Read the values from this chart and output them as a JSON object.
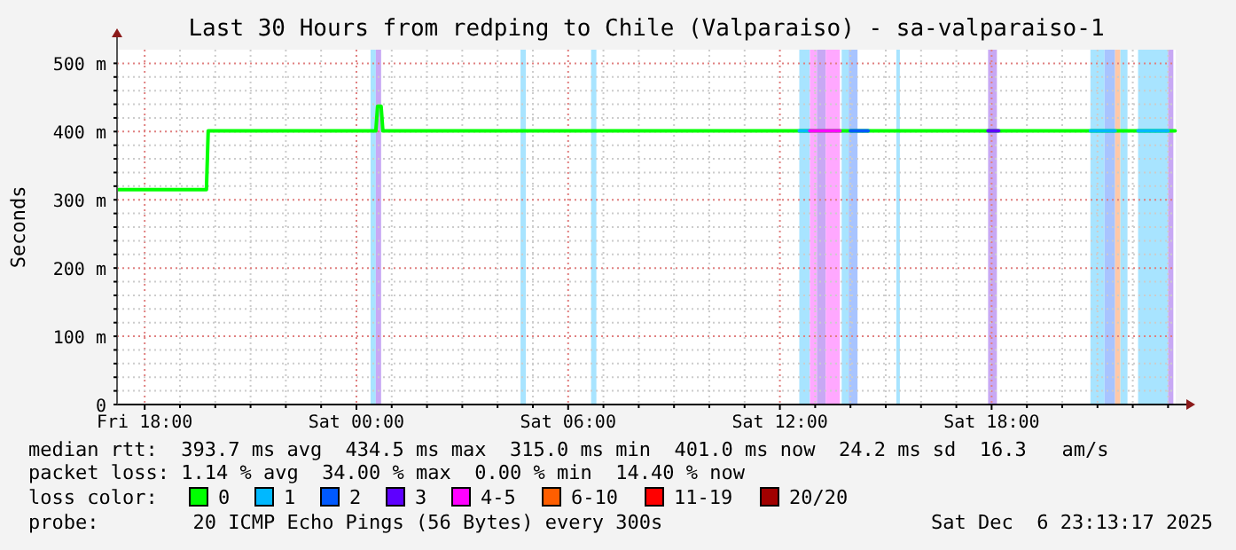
{
  "chart_data": {
    "type": "line",
    "title": "Last 30 Hours from redping to Chile (Valparaiso) - sa-valparaiso-1",
    "ylabel": "Seconds",
    "xlim": [
      "2025-12-05T17:13",
      "2025-12-06T23:13"
    ],
    "xticks": [
      {
        "value": "2025-12-05T18:00",
        "label": "Fri 18:00"
      },
      {
        "value": "2025-12-05T19:00",
        "label": null
      },
      {
        "value": "2025-12-05T20:00",
        "label": null
      },
      {
        "value": "2025-12-05T21:00",
        "label": null
      },
      {
        "value": "2025-12-05T22:00",
        "label": null
      },
      {
        "value": "2025-12-05T23:00",
        "label": null
      },
      {
        "value": "2025-12-06T00:00",
        "label": "Sat 00:00"
      },
      {
        "value": "2025-12-06T01:00",
        "label": null
      },
      {
        "value": "2025-12-06T02:00",
        "label": null
      },
      {
        "value": "2025-12-06T03:00",
        "label": null
      },
      {
        "value": "2025-12-06T04:00",
        "label": null
      },
      {
        "value": "2025-12-06T05:00",
        "label": null
      },
      {
        "value": "2025-12-06T06:00",
        "label": "Sat 06:00"
      },
      {
        "value": "2025-12-06T07:00",
        "label": null
      },
      {
        "value": "2025-12-06T08:00",
        "label": null
      },
      {
        "value": "2025-12-06T09:00",
        "label": null
      },
      {
        "value": "2025-12-06T10:00",
        "label": null
      },
      {
        "value": "2025-12-06T11:00",
        "label": null
      },
      {
        "value": "2025-12-06T12:00",
        "label": "Sat 12:00"
      },
      {
        "value": "2025-12-06T13:00",
        "label": null
      },
      {
        "value": "2025-12-06T14:00",
        "label": null
      },
      {
        "value": "2025-12-06T15:00",
        "label": null
      },
      {
        "value": "2025-12-06T16:00",
        "label": null
      },
      {
        "value": "2025-12-06T17:00",
        "label": null
      },
      {
        "value": "2025-12-06T18:00",
        "label": "Sat 18:00"
      },
      {
        "value": "2025-12-06T19:00",
        "label": null
      },
      {
        "value": "2025-12-06T20:00",
        "label": null
      },
      {
        "value": "2025-12-06T21:00",
        "label": null
      },
      {
        "value": "2025-12-06T22:00",
        "label": null
      },
      {
        "value": "2025-12-06T23:00",
        "label": null
      }
    ],
    "ylim": [
      0,
      520
    ],
    "yticks": [
      0,
      {
        "value": 20,
        "label": null
      },
      {
        "value": 40,
        "label": null
      },
      {
        "value": 60,
        "label": null
      },
      {
        "value": 80,
        "label": null
      },
      {
        "value": 100,
        "label": "100 m"
      },
      {
        "value": 120,
        "label": null
      },
      {
        "value": 140,
        "label": null
      },
      {
        "value": 160,
        "label": null
      },
      {
        "value": 180,
        "label": null
      },
      {
        "value": 200,
        "label": "200 m"
      },
      {
        "value": 220,
        "label": null
      },
      {
        "value": 240,
        "label": null
      },
      {
        "value": 260,
        "label": null
      },
      {
        "value": 280,
        "label": null
      },
      {
        "value": 300,
        "label": "300 m"
      },
      {
        "value": 320,
        "label": null
      },
      {
        "value": 340,
        "label": null
      },
      {
        "value": 360,
        "label": null
      },
      {
        "value": 380,
        "label": null
      },
      {
        "value": 400,
        "label": "400 m"
      },
      {
        "value": 420,
        "label": null
      },
      {
        "value": 440,
        "label": null
      },
      {
        "value": 460,
        "label": null
      },
      {
        "value": 480,
        "label": null
      },
      {
        "value": 500,
        "label": "500 m"
      }
    ],
    "grid": true,
    "legend": "bottom",
    "legend_title": "loss color:",
    "series": [
      {
        "name": "0",
        "color": "#00ff00",
        "x": [
          "2025-12-05T17:15",
          "2025-12-05T19:45",
          "2025-12-05T19:48",
          "2025-12-06T00:33",
          "2025-12-06T00:36",
          "2025-12-06T00:42",
          "2025-12-06T00:45",
          "2025-12-06T23:12"
        ],
        "values": [
          315,
          315,
          401,
          401,
          437,
          437,
          401,
          401
        ]
      },
      {
        "name": "1",
        "color": "#00b8ff",
        "x": [
          "2025-12-06T12:33",
          "2025-12-06T12:51"
        ],
        "values": [
          401,
          401
        ]
      },
      {
        "color": "#00b8ff",
        "x": [
          "2025-12-06T20:48",
          "2025-12-06T21:30"
        ],
        "values": [
          401,
          401
        ]
      },
      {
        "color": "#00b8ff",
        "x": [
          "2025-12-06T22:09",
          "2025-12-06T23:00"
        ],
        "values": [
          401,
          401
        ]
      },
      {
        "name": "2",
        "color": "#0059ff",
        "x": [
          "2025-12-06T14:00",
          "2025-12-06T14:30"
        ],
        "values": [
          401,
          401
        ]
      },
      {
        "name": "3",
        "color": "#5e00ff",
        "x": [
          "2025-12-06T17:54",
          "2025-12-06T18:12"
        ],
        "values": [
          401,
          401
        ]
      },
      {
        "name": "4-5",
        "color": "#ff00ff",
        "x": [
          "2025-12-06T12:51",
          "2025-12-06T13:42"
        ],
        "values": [
          401,
          401
        ]
      },
      {
        "name": "6-10",
        "color": "#ff5e00"
      },
      {
        "name": "11-19",
        "color": "#ff0000"
      },
      {
        "name": "20/20",
        "color": "#a10000"
      }
    ],
    "bands": [
      {
        "axis": "x",
        "from": "2025-12-06T00:24",
        "to": "2025-12-06T00:33",
        "color": "#a8e4ff"
      },
      {
        "axis": "x",
        "from": "2025-12-06T00:33",
        "to": "2025-12-06T00:42",
        "color": "#c8a8f4"
      },
      {
        "axis": "x",
        "from": "2025-12-06T04:39",
        "to": "2025-12-06T04:48",
        "color": "#a8e4ff"
      },
      {
        "axis": "x",
        "from": "2025-12-06T06:39",
        "to": "2025-12-06T06:48",
        "color": "#a8e4ff"
      },
      {
        "axis": "x",
        "from": "2025-12-06T12:33",
        "to": "2025-12-06T12:51",
        "color": "#a8e4ff"
      },
      {
        "axis": "x",
        "from": "2025-12-06T12:51",
        "to": "2025-12-06T13:03",
        "color": "#ffa8ff"
      },
      {
        "axis": "x",
        "from": "2025-12-06T13:03",
        "to": "2025-12-06T13:18",
        "color": "#c8a8f4"
      },
      {
        "axis": "x",
        "from": "2025-12-06T13:18",
        "to": "2025-12-06T13:42",
        "color": "#ffa8ff"
      },
      {
        "axis": "x",
        "from": "2025-12-06T13:45",
        "to": "2025-12-06T13:57",
        "color": "#a8e4ff"
      },
      {
        "axis": "x",
        "from": "2025-12-06T13:57",
        "to": "2025-12-06T14:12",
        "color": "#a8c4ff"
      },
      {
        "axis": "x",
        "from": "2025-12-06T15:18",
        "to": "2025-12-06T15:24",
        "color": "#a8e4ff"
      },
      {
        "axis": "x",
        "from": "2025-12-06T17:54",
        "to": "2025-12-06T18:09",
        "color": "#c8a8f4"
      },
      {
        "axis": "x",
        "from": "2025-12-06T20:48",
        "to": "2025-12-06T21:12",
        "color": "#a8e4ff"
      },
      {
        "axis": "x",
        "from": "2025-12-06T21:12",
        "to": "2025-12-06T21:30",
        "color": "#a8c4ff"
      },
      {
        "axis": "x",
        "from": "2025-12-06T21:30",
        "to": "2025-12-06T21:39",
        "color": "#ffc8a8"
      },
      {
        "axis": "x",
        "from": "2025-12-06T21:39",
        "to": "2025-12-06T21:51",
        "color": "#a8e4ff"
      },
      {
        "axis": "x",
        "from": "2025-12-06T22:09",
        "to": "2025-12-06T23:00",
        "color": "#a8e4ff"
      },
      {
        "axis": "x",
        "from": "2025-12-06T23:00",
        "to": "2025-12-06T23:09",
        "color": "#c8a8f4"
      }
    ],
    "annotations": [
      "median rtt:  393.7 ms avg  434.5 ms max  315.0 ms min  401.0 ms now  24.2 ms sd  16.3   am/s",
      "packet loss: 1.14 % avg  34.00 % max  0.00 % min  14.40 % now",
      "probe:        20 ICMP Echo Pings (56 Bytes) every 300s",
      "Sat Dec  6 23:13:17 2025"
    ]
  }
}
